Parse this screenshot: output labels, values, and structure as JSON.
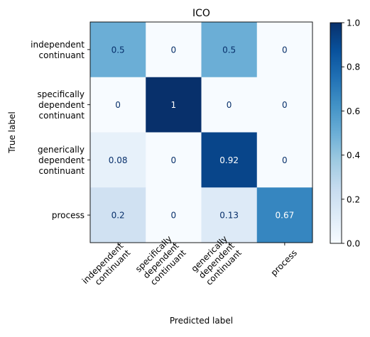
{
  "chart_data": {
    "type": "heatmap",
    "title": "ICO",
    "xlabel": "Predicted label",
    "ylabel": "True label",
    "x_categories": [
      [
        "independent",
        "continuant"
      ],
      [
        "specifically",
        "dependent",
        "continuant"
      ],
      [
        "generically",
        "dependent",
        "continuant"
      ],
      [
        "process"
      ]
    ],
    "y_categories": [
      [
        "independent",
        "continuant"
      ],
      [
        "specifically",
        "dependent",
        "continuant"
      ],
      [
        "generically",
        "dependent",
        "continuant"
      ],
      [
        "process"
      ]
    ],
    "values": [
      [
        0.5,
        0,
        0.5,
        0
      ],
      [
        0,
        1,
        0,
        0
      ],
      [
        0.08,
        0,
        0.92,
        0
      ],
      [
        0.2,
        0,
        0.13,
        0.67
      ]
    ],
    "cell_labels": [
      [
        "0.5",
        "0",
        "0.5",
        "0"
      ],
      [
        "0",
        "1",
        "0",
        "0"
      ],
      [
        "0.08",
        "0",
        "0.92",
        "0"
      ],
      [
        "0.2",
        "0",
        "0.13",
        "0.67"
      ]
    ],
    "colormap": "Blues",
    "colorbar": {
      "range": [
        0.0,
        1.0
      ],
      "ticks": [
        0.0,
        0.2,
        0.4,
        0.6,
        0.8,
        1.0
      ],
      "tick_labels": [
        "0.0",
        "0.2",
        "0.4",
        "0.6",
        "0.8",
        "1.0"
      ]
    },
    "grid": false
  }
}
